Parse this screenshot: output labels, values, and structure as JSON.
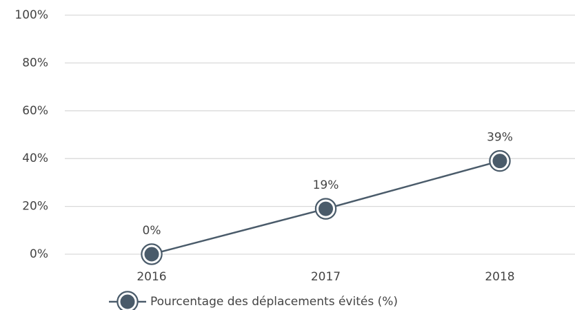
{
  "chart_data": {
    "type": "line",
    "categories": [
      "2016",
      "2017",
      "2018"
    ],
    "series": [
      {
        "name": "Pourcentage des déplacements évités (%)",
        "color": "#4a5b6a",
        "values": [
          0,
          19,
          39
        ],
        "value_labels": [
          "0%",
          "19%",
          "39%"
        ]
      }
    ],
    "ylim": [
      0,
      100
    ],
    "yticks": [
      {
        "value": 0,
        "label": "0%"
      },
      {
        "value": 20,
        "label": "20%"
      },
      {
        "value": 40,
        "label": "40%"
      },
      {
        "value": 60,
        "label": "60%"
      },
      {
        "value": 80,
        "label": "80%"
      },
      {
        "value": 100,
        "label": "100%"
      }
    ],
    "grid": true,
    "legend": "bottom"
  }
}
